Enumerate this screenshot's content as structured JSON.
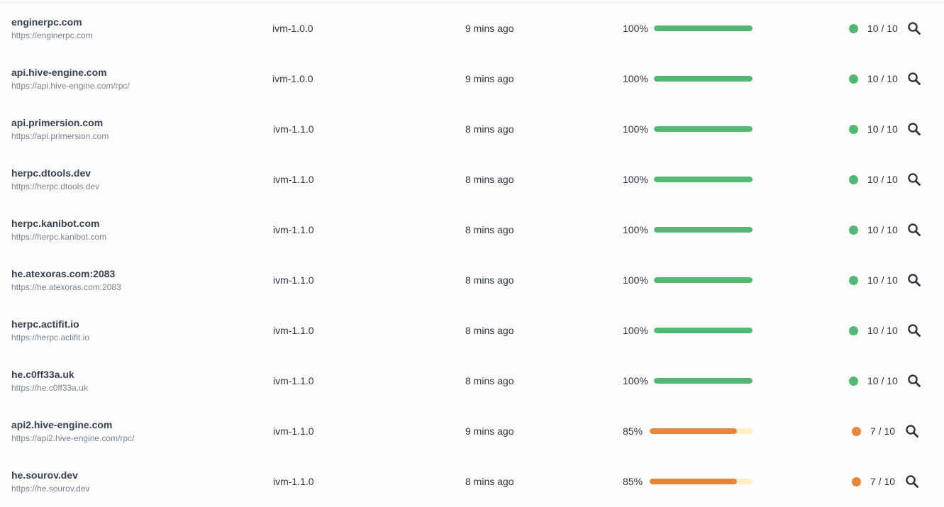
{
  "nodes": [
    {
      "name": "enginerpc.com",
      "url": "https://enginerpc.com",
      "version": "ivm-1.0.0",
      "updated": "9 mins ago",
      "uptime_label": "100%",
      "uptime": 1.0,
      "score": "10 / 10",
      "status": "ok"
    },
    {
      "name": "api.hive-engine.com",
      "url": "https://api.hive-engine.com/rpc/",
      "version": "ivm-1.0.0",
      "updated": "9 mins ago",
      "uptime_label": "100%",
      "uptime": 1.0,
      "score": "10 / 10",
      "status": "ok"
    },
    {
      "name": "api.primersion.com",
      "url": "https://api.primersion.com",
      "version": "ivm-1.1.0",
      "updated": "8 mins ago",
      "uptime_label": "100%",
      "uptime": 1.0,
      "score": "10 / 10",
      "status": "ok"
    },
    {
      "name": "herpc.dtools.dev",
      "url": "https://herpc.dtools.dev",
      "version": "ivm-1.1.0",
      "updated": "8 mins ago",
      "uptime_label": "100%",
      "uptime": 1.0,
      "score": "10 / 10",
      "status": "ok"
    },
    {
      "name": "herpc.kanibot.com",
      "url": "https://herpc.kanibot.com",
      "version": "ivm-1.1.0",
      "updated": "8 mins ago",
      "uptime_label": "100%",
      "uptime": 1.0,
      "score": "10 / 10",
      "status": "ok"
    },
    {
      "name": "he.atexoras.com:2083",
      "url": "https://he.atexoras.com:2083",
      "version": "ivm-1.1.0",
      "updated": "8 mins ago",
      "uptime_label": "100%",
      "uptime": 1.0,
      "score": "10 / 10",
      "status": "ok"
    },
    {
      "name": "herpc.actifit.io",
      "url": "https://herpc.actifit.io",
      "version": "ivm-1.1.0",
      "updated": "8 mins ago",
      "uptime_label": "100%",
      "uptime": 1.0,
      "score": "10 / 10",
      "status": "ok"
    },
    {
      "name": "he.c0ff33a.uk",
      "url": "https://he.c0ff33a.uk",
      "version": "ivm-1.1.0",
      "updated": "8 mins ago",
      "uptime_label": "100%",
      "uptime": 1.0,
      "score": "10 / 10",
      "status": "ok"
    },
    {
      "name": "api2.hive-engine.com",
      "url": "https://api2.hive-engine.com/rpc/",
      "version": "ivm-1.1.0",
      "updated": "9 mins ago",
      "uptime_label": "85%",
      "uptime": 0.85,
      "score": "7 / 10",
      "status": "warn"
    },
    {
      "name": "he.sourov.dev",
      "url": "https://he.sourov.dev",
      "version": "ivm-1.1.0",
      "updated": "8 mins ago",
      "uptime_label": "85%",
      "uptime": 0.85,
      "score": "7 / 10",
      "status": "warn"
    }
  ],
  "colors": {
    "ok": "#52b874",
    "warn": "#e8863d",
    "ok_track": "#d9f2e2",
    "warn_track": "#fdeec6"
  },
  "icons": {
    "row_action": "search-icon"
  }
}
